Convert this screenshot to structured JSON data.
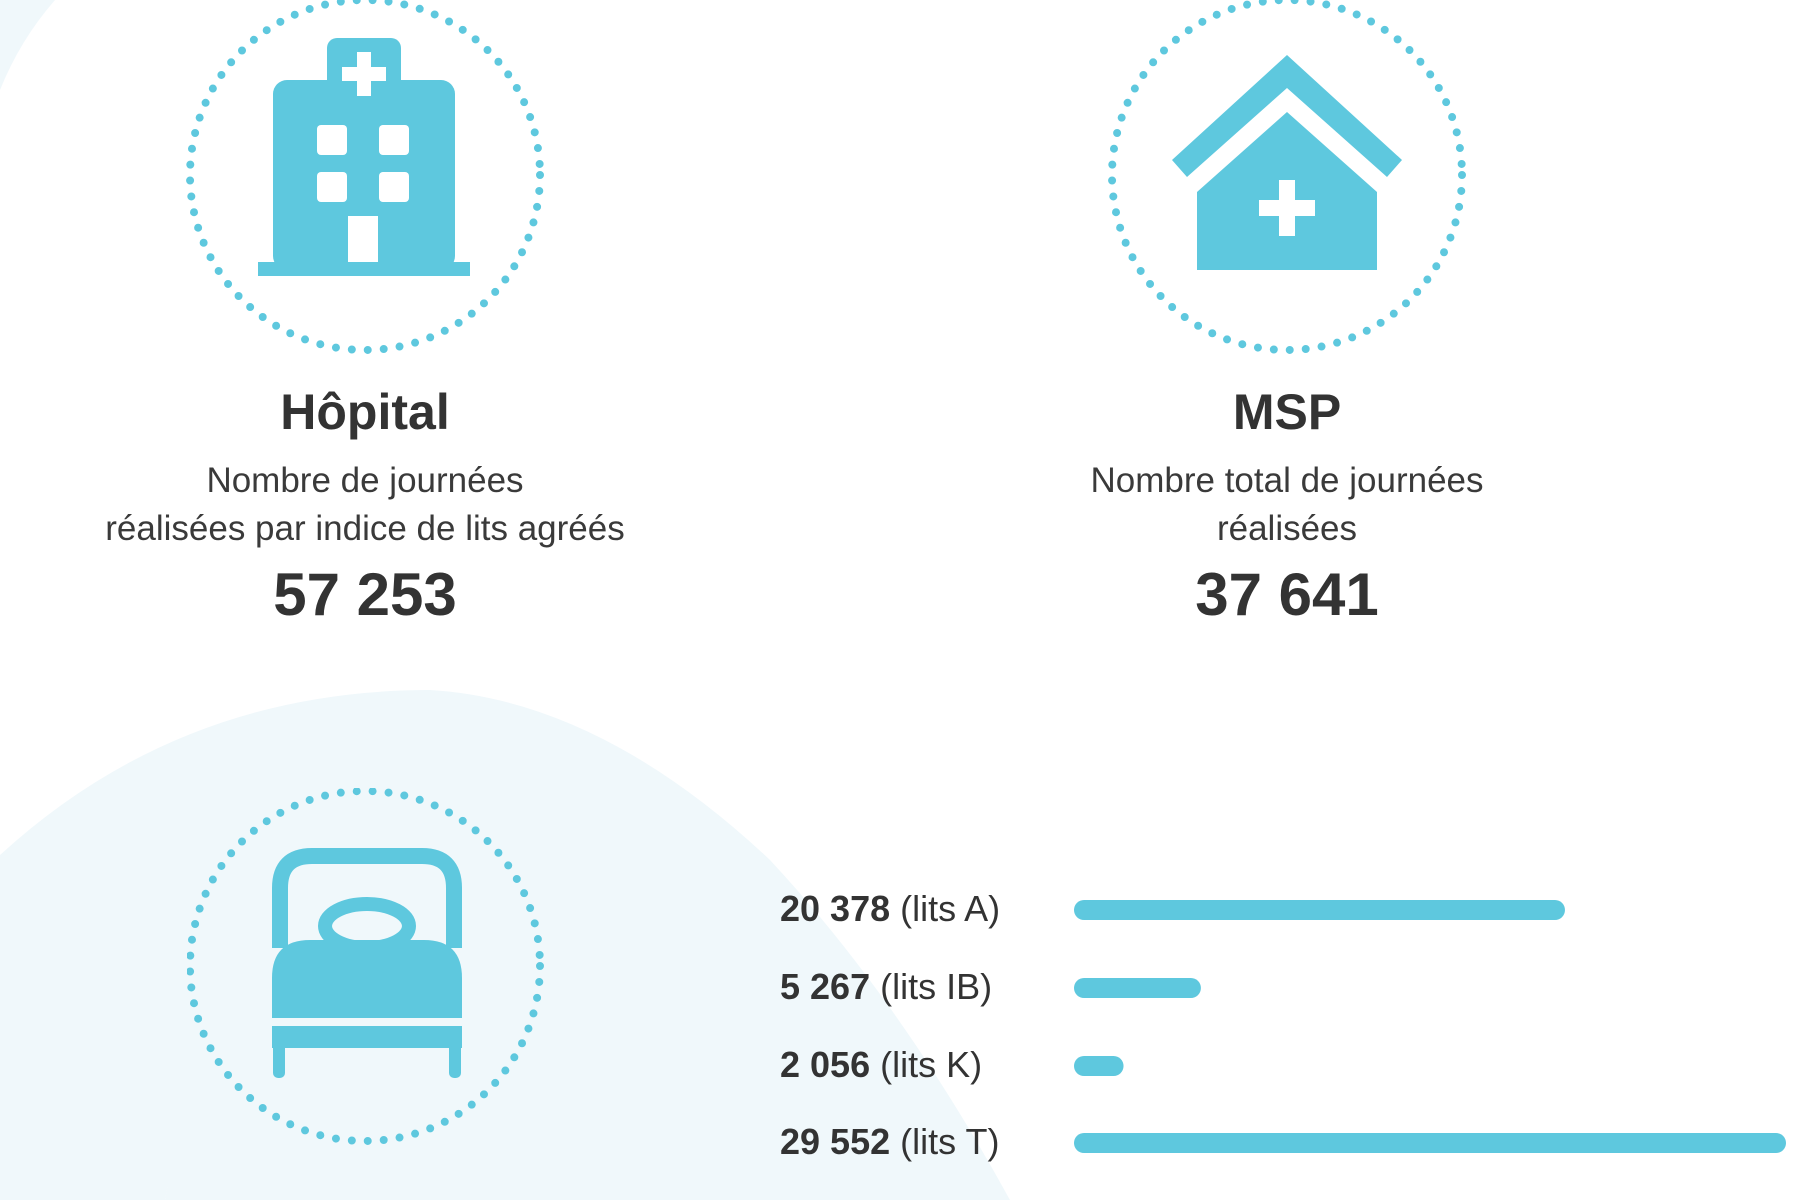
{
  "colors": {
    "accent": "#5ec8de",
    "background_shape": "#f0f8fb",
    "text": "#333333"
  },
  "hospital": {
    "icon": "hospital-icon",
    "title": "Hôpital",
    "desc_line1": "Nombre de journées",
    "desc_line2": "réalisées par indice de lits agréés",
    "value": "57 253"
  },
  "msp": {
    "icon": "house-medical-icon",
    "title": "MSP",
    "desc_line1": "Nombre total de journées",
    "desc_line2": "réalisées",
    "value": "37 641"
  },
  "beds": {
    "icon": "bed-icon"
  },
  "chart_data": {
    "type": "bar",
    "orientation": "horizontal",
    "title": "",
    "xlabel": "",
    "ylabel": "",
    "categories": [
      "lits A",
      "lits IB",
      "lits K",
      "lits T"
    ],
    "values": [
      20378,
      5267,
      2056,
      29552
    ],
    "value_labels": [
      "20 378",
      "5 267",
      "2 056",
      "29 552"
    ],
    "category_labels": [
      "(lits A)",
      "(lits IB)",
      "(lits K)",
      "(lits T)"
    ],
    "xlim": [
      0,
      29552
    ],
    "grid": false,
    "legend": "none"
  }
}
